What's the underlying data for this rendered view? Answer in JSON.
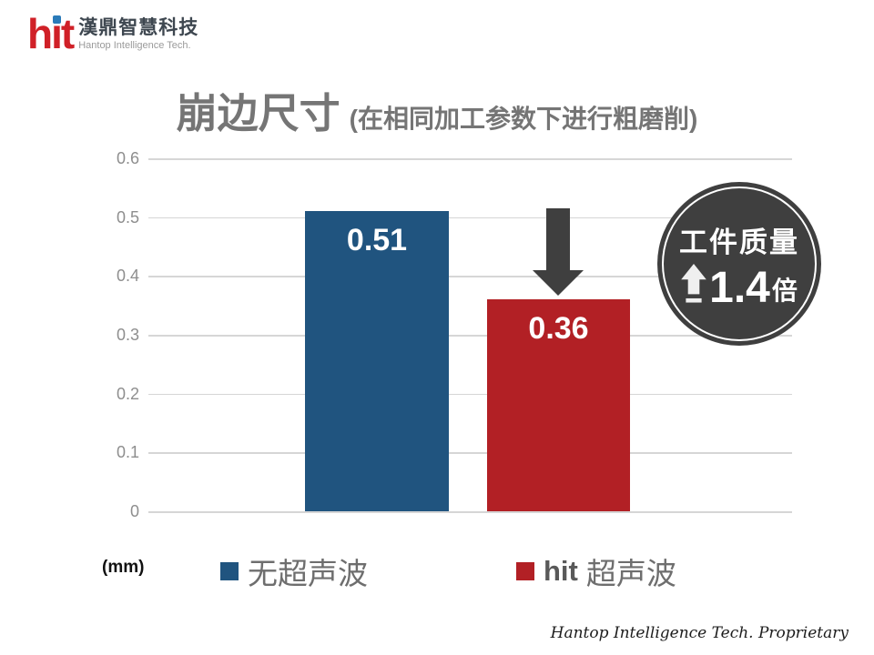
{
  "logo": {
    "brand": "hit",
    "company_cn": "漢鼎智慧科技",
    "company_en": "Hantop Intelligence Tech."
  },
  "title": {
    "main": "崩边尺寸",
    "sub": "(在相同加工参数下进行粗磨削)"
  },
  "chart_data": {
    "type": "bar",
    "title": "崩边尺寸 (在相同加工参数下进行粗磨削)",
    "unit": "(mm)",
    "categories": [
      "无超声波",
      "hit 超声波"
    ],
    "values": [
      0.51,
      0.36
    ],
    "bar_labels": [
      "0.51",
      "0.36"
    ],
    "bar_colors": [
      "#20547F",
      "#B22025"
    ],
    "ylim": [
      0,
      0.6
    ],
    "yticks": [
      "0.6",
      "0.5",
      "0.4",
      "0.3",
      "0.2",
      "0.1",
      "0"
    ],
    "grid": true,
    "legend_position": "bottom"
  },
  "annotation": {
    "arrow_icon": "down-arrow",
    "arrow_color": "#3F3F3F"
  },
  "badge": {
    "line1": "工件质量",
    "icon": "up-arrow",
    "icon_color": "#EFEFEF",
    "value": "1.4",
    "suffix": "倍",
    "bg_color": "#3F3F3F"
  },
  "legend": {
    "items": [
      {
        "swatch_color": "#20547F",
        "label": "无超声波"
      },
      {
        "swatch_color": "#B22025",
        "prefix": "hit",
        "label": "超声波"
      }
    ]
  },
  "axis_unit_label": "(mm)",
  "footer": {
    "text": "Hantop Intelligence Tech. Proprietary"
  },
  "colors": {
    "bar_blue": "#20547F",
    "bar_red": "#B22025",
    "dark_gray": "#3F3F3F",
    "title_gray": "#757575",
    "axis_gray": "#8E8E8E",
    "grid_gray": "#D6D6D6",
    "logo_red": "#D02027",
    "logo_dot_blue": "#2B7BB9"
  }
}
